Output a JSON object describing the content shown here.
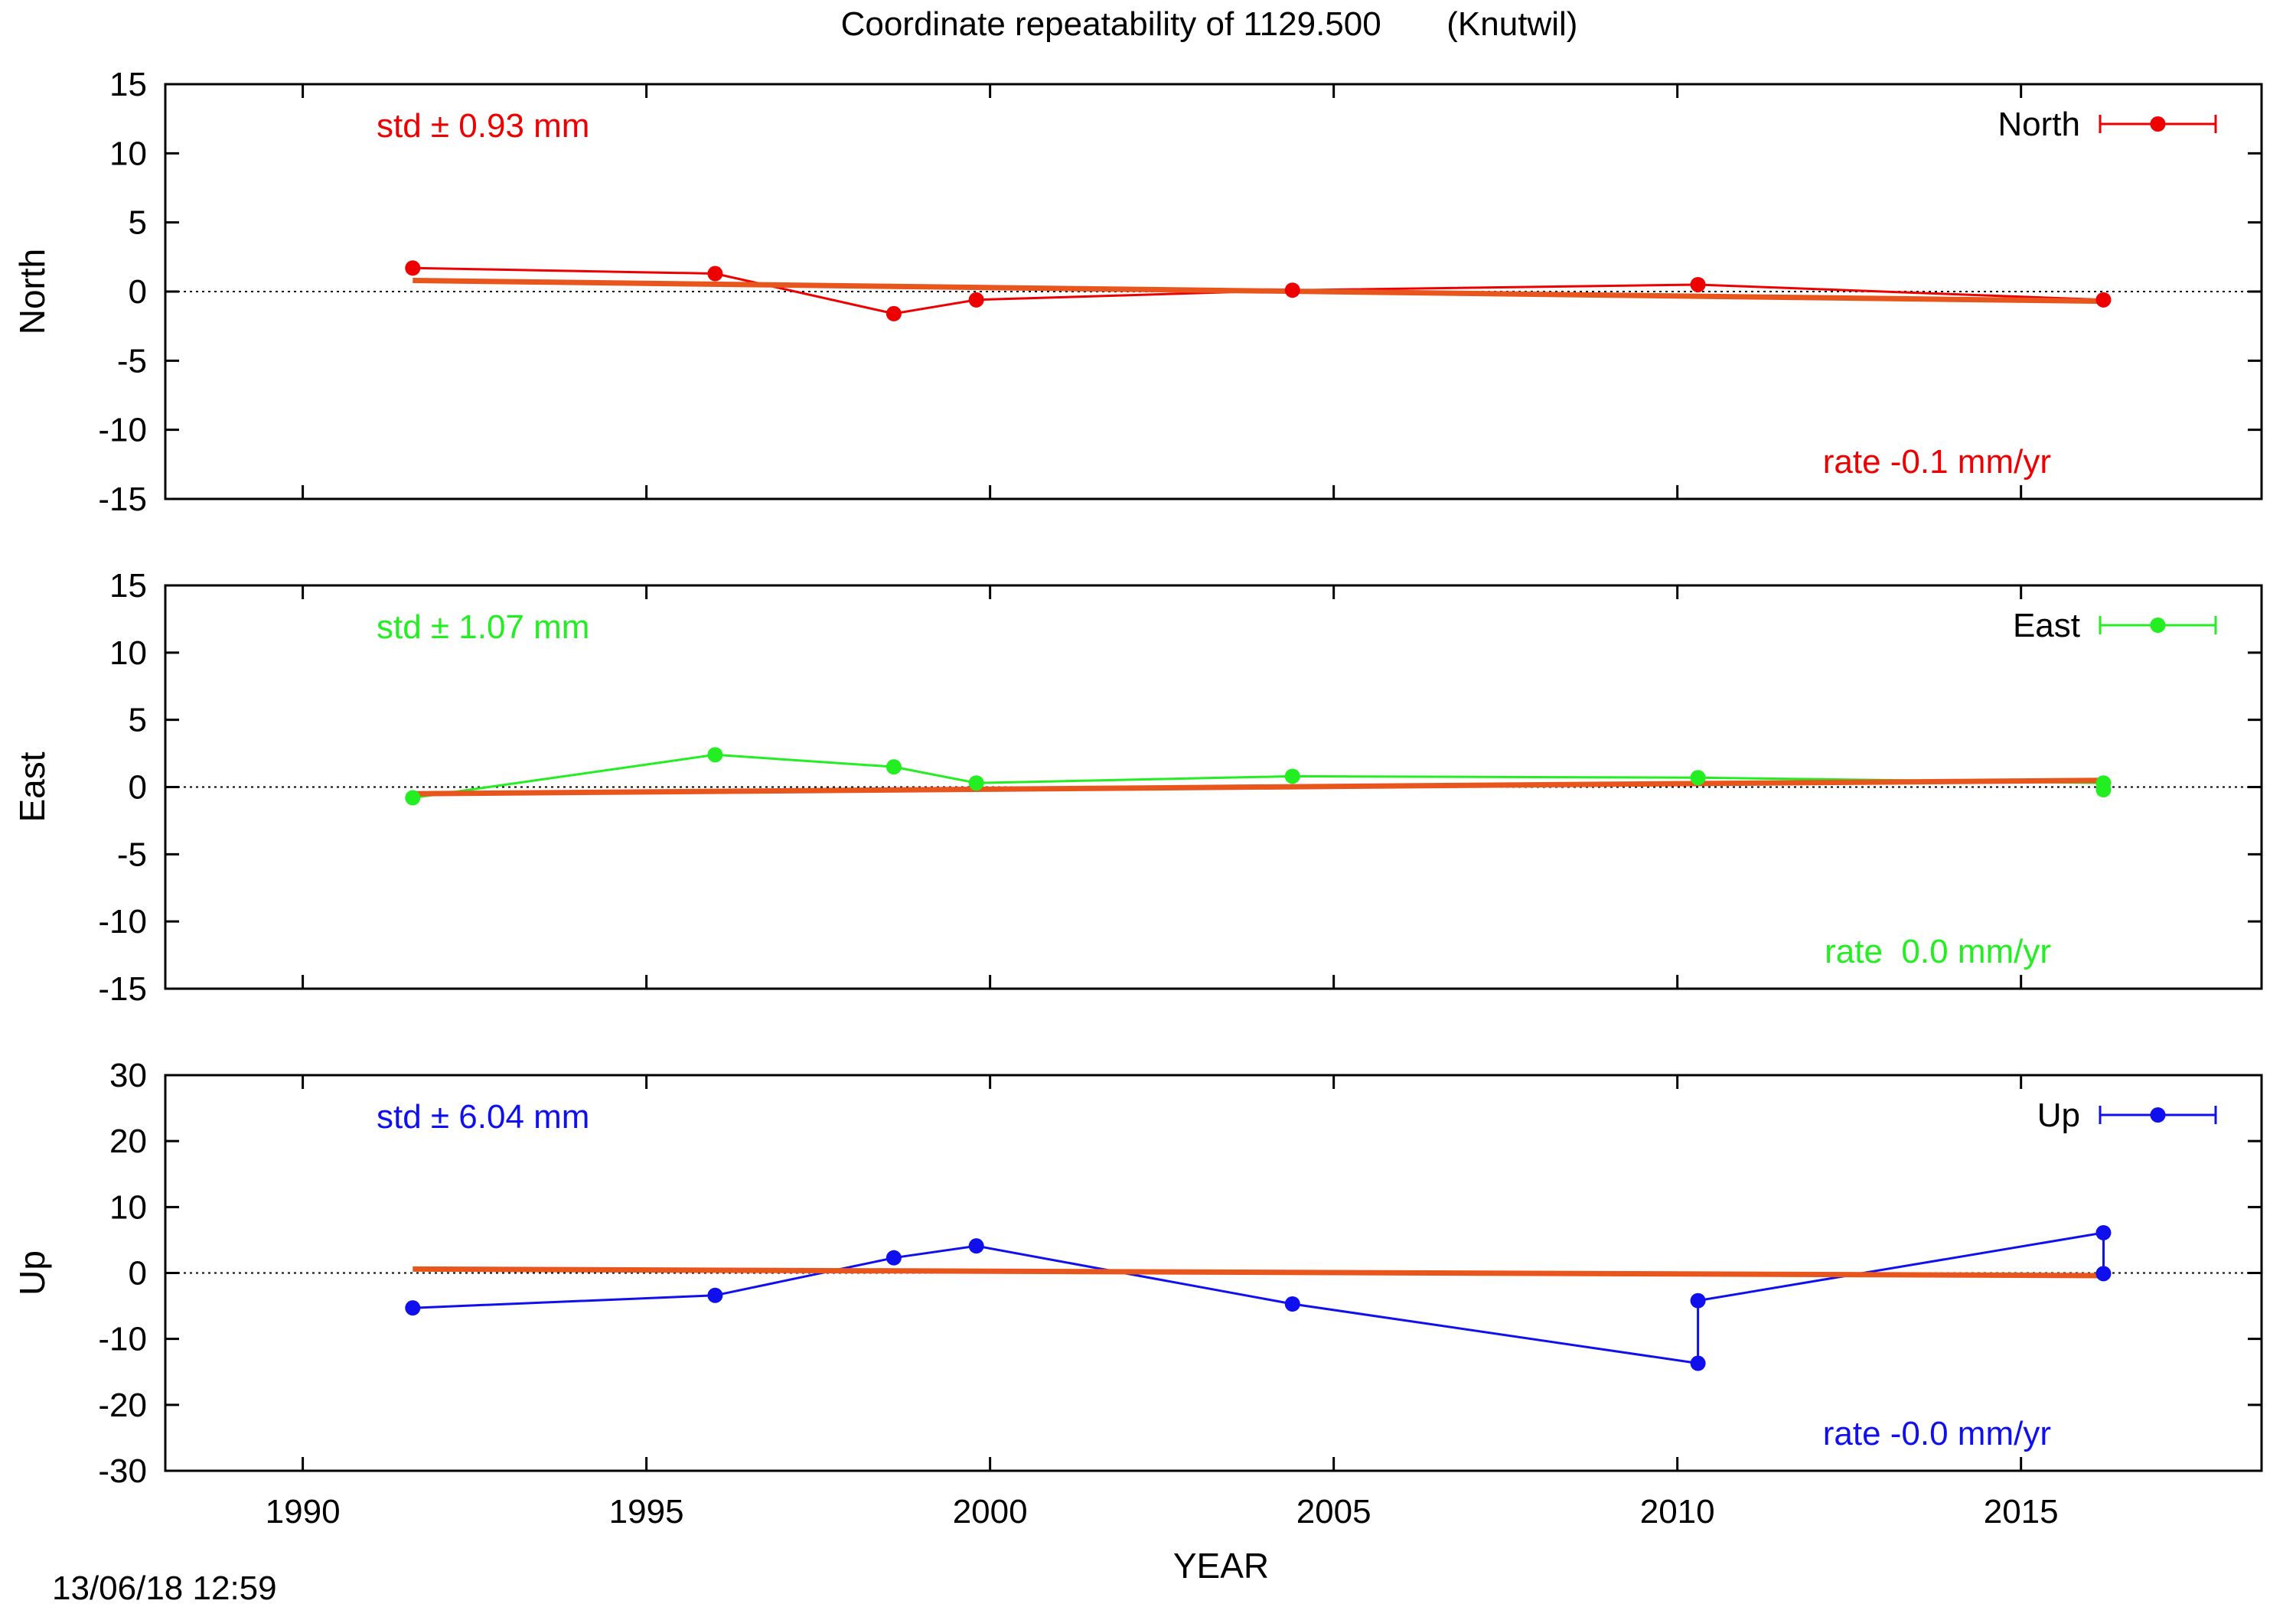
{
  "title": "Coordinate repeatability of 1129.500       (Knutwil)",
  "timestamp": "13/06/18 12:59",
  "colors": {
    "trend": "#e8561e",
    "zero_line": "#000000",
    "frame": "#000000"
  },
  "chart_data": [
    {
      "type": "line",
      "panel": "north",
      "ylabel": "North",
      "ylim": [
        -15,
        15
      ],
      "yticks": [
        15,
        10,
        5,
        0,
        -5,
        -10,
        -15
      ],
      "xlim": [
        1988,
        2018.5
      ],
      "color": "#ee0000",
      "legend_label": "North",
      "legend_position": "top-right",
      "std_text": "std ± 0.93 mm",
      "rate_text": "rate -0.1 mm/yr",
      "points": [
        {
          "x": 1991.6,
          "y": 1.7
        },
        {
          "x": 1996.0,
          "y": 1.3
        },
        {
          "x": 1998.6,
          "y": -1.6
        },
        {
          "x": 1999.8,
          "y": -0.6
        },
        {
          "x": 2004.4,
          "y": 0.1
        },
        {
          "x": 2010.3,
          "y": 0.5
        },
        {
          "x": 2016.2,
          "y": -0.6
        }
      ],
      "trend": [
        {
          "x": 1991.6,
          "y": 0.8
        },
        {
          "x": 2016.2,
          "y": -0.7
        }
      ],
      "zero_line": true
    },
    {
      "type": "line",
      "panel": "east",
      "ylabel": "East",
      "ylim": [
        -15,
        15
      ],
      "yticks": [
        15,
        10,
        5,
        0,
        -5,
        -10,
        -15
      ],
      "xlim": [
        1988,
        2018.5
      ],
      "color": "#22ee22",
      "legend_label": "East",
      "legend_position": "top-right",
      "std_text": "std ± 1.07 mm",
      "rate_text": "rate  0.0 mm/yr",
      "points": [
        {
          "x": 1991.6,
          "y": -0.8
        },
        {
          "x": 1996.0,
          "y": 2.4
        },
        {
          "x": 1998.6,
          "y": 1.5
        },
        {
          "x": 1999.8,
          "y": 0.3
        },
        {
          "x": 2004.4,
          "y": 0.8
        },
        {
          "x": 2010.3,
          "y": 0.7
        },
        {
          "x": 2016.2,
          "y": 0.3
        },
        {
          "x": 2016.2,
          "y": -0.2
        }
      ],
      "trend": [
        {
          "x": 1991.6,
          "y": -0.5
        },
        {
          "x": 2016.2,
          "y": 0.5
        }
      ],
      "zero_line": true
    },
    {
      "type": "line",
      "panel": "up",
      "ylabel": "Up",
      "ylim": [
        -30,
        30
      ],
      "yticks": [
        30,
        20,
        10,
        0,
        -10,
        -20,
        -30
      ],
      "xlim": [
        1988,
        2018.5
      ],
      "xlabel": "YEAR",
      "xticks": [
        1990,
        1995,
        2000,
        2005,
        2010,
        2015
      ],
      "color": "#1010ee",
      "legend_label": "Up",
      "legend_position": "top-right",
      "std_text": "std ± 6.04 mm",
      "rate_text": "rate -0.0 mm/yr",
      "points": [
        {
          "x": 1991.6,
          "y": -5.3
        },
        {
          "x": 1996.0,
          "y": -3.4
        },
        {
          "x": 1998.6,
          "y": 2.3
        },
        {
          "x": 1999.8,
          "y": 4.1
        },
        {
          "x": 2004.4,
          "y": -4.7
        },
        {
          "x": 2010.3,
          "y": -13.7
        },
        {
          "x": 2010.3,
          "y": -4.2
        },
        {
          "x": 2016.2,
          "y": 6.1
        },
        {
          "x": 2016.2,
          "y": -0.1
        }
      ],
      "trend": [
        {
          "x": 1991.6,
          "y": 0.6
        },
        {
          "x": 2016.2,
          "y": -0.4
        }
      ],
      "zero_line": true
    }
  ]
}
